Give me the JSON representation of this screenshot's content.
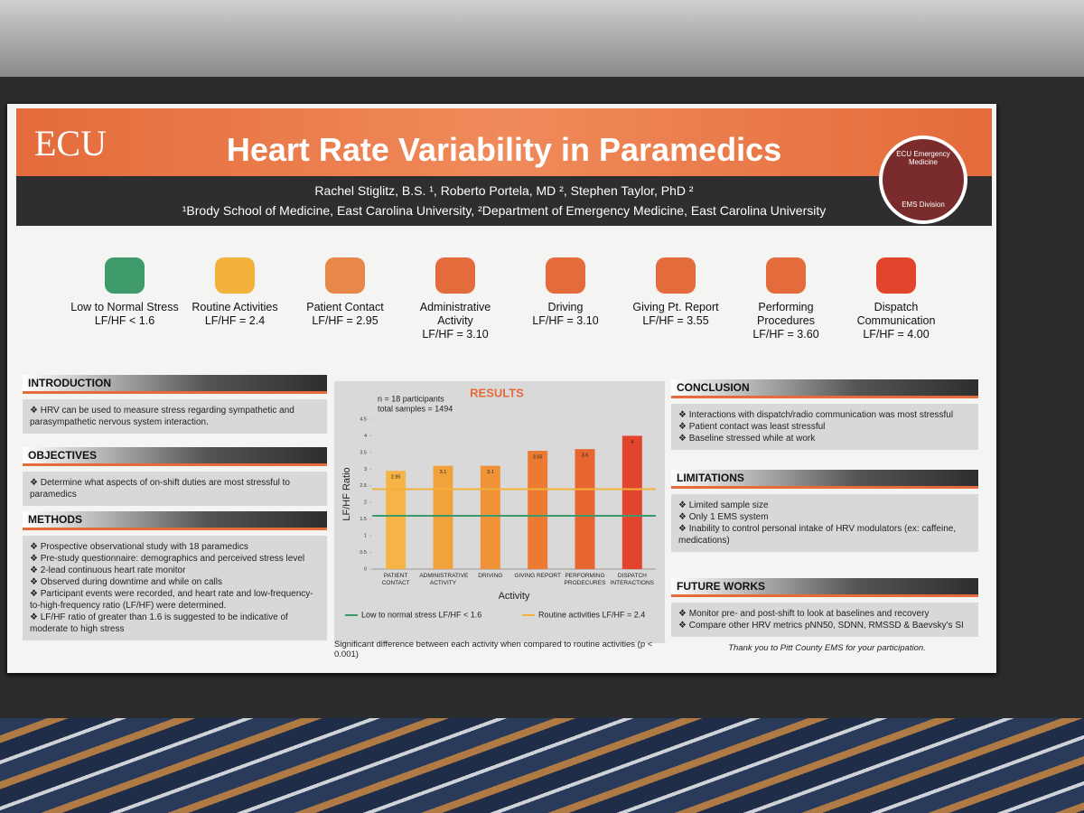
{
  "header": {
    "logo": "ECU",
    "title": "Heart Rate Variability in Paramedics",
    "authors": "Rachel Stiglitz, B.S. ¹, Roberto Portela, MD ², Stephen Taylor, PhD ²",
    "affiliations": "¹Brody School of Medicine, East Carolina University, ²Department of Emergency Medicine, East Carolina University",
    "badge_top": "ECU Emergency Medicine",
    "badge_bottom": "EMS Division"
  },
  "activities": [
    {
      "label": "Low to Normal Stress",
      "ratio": "LF/HF < 1.6"
    },
    {
      "label": "Routine Activities",
      "ratio": "LF/HF = 2.4"
    },
    {
      "label": "Patient Contact",
      "ratio": "LF/HF = 2.95"
    },
    {
      "label": "Administrative Activity",
      "ratio": "LF/HF = 3.10"
    },
    {
      "label": "Driving",
      "ratio": "LF/HF = 3.10"
    },
    {
      "label": "Giving Pt. Report",
      "ratio": "LF/HF = 3.55"
    },
    {
      "label": "Performing Procedures",
      "ratio": "LF/HF = 3.60"
    },
    {
      "label": "Dispatch Communication",
      "ratio": "LF/HF = 4.00"
    }
  ],
  "introduction": {
    "title": "INTRODUCTION",
    "items": [
      "HRV can be used to measure stress regarding sympathetic and parasympathetic nervous system interaction."
    ]
  },
  "objectives": {
    "title": "OBJECTIVES",
    "items": [
      "Determine what aspects of on-shift duties are most stressful to paramedics"
    ]
  },
  "methods": {
    "title": "METHODS",
    "items": [
      "Prospective observational study with 18 paramedics",
      "Pre-study questionnaire: demographics and perceived stress level",
      "2-lead continuous heart rate monitor",
      "Observed during downtime and while on calls",
      "Participant events were recorded, and heart rate and low-frequency-to-high-frequency ratio (LF/HF) were determined.",
      "LF/HF ratio of greater than 1.6 is suggested to be indicative of moderate to high stress"
    ]
  },
  "results": {
    "type": "bar",
    "title": "RESULTS",
    "notes": [
      "n = 18 participants",
      "total samples = 1494"
    ],
    "y_label": "LF/HF Ratio",
    "x_label": "Activity",
    "categories": [
      "PATIENT CONTACT",
      "ADMINISTRATIVE ACTIVITY",
      "DRIVING",
      "GIVING REPORT",
      "PERFORMING PRODECURES",
      "DISPATCH INTERACTIONS"
    ],
    "values": [
      2.95,
      3.1,
      3.1,
      3.55,
      3.6,
      4
    ],
    "colors": [
      "#f5b445",
      "#f2a23c",
      "#f09338",
      "#ec7a33",
      "#e8652f",
      "#e2452b"
    ],
    "ylim": [
      0,
      4.5
    ],
    "yticks": [
      0,
      0.5,
      1,
      1.5,
      2,
      2.5,
      3,
      3.5,
      4,
      4.5
    ],
    "reference_lines": [
      {
        "name": "Low to normal stress LF/HF < 1.6",
        "value": 1.6,
        "color": "#3a9a6a"
      },
      {
        "name": "Routine activities LF/HF = 2.4",
        "value": 2.4,
        "color": "#f2b13a"
      }
    ],
    "footnote": "Significant difference between each activity when compared to routine activities (p < 0.001)"
  },
  "conclusion": {
    "title": "CONCLUSION",
    "items": [
      "Interactions with dispatch/radio communication was most stressful",
      "Patient contact was least stressful",
      "Baseline stressed while at work"
    ]
  },
  "limitations": {
    "title": "LIMITATIONS",
    "items": [
      "Limited sample size",
      "Only 1 EMS system",
      "Inability to control personal intake of HRV modulators (ex: caffeine, medications)"
    ]
  },
  "future_works": {
    "title": "FUTURE WORKS",
    "items": [
      "Monitor pre- and post-shift to look at baselines and recovery",
      "Compare other HRV metrics pNN50, SDNN, RMSSD & Baevsky's SI"
    ]
  },
  "thanks": "Thank you to Pitt County EMS for your participation."
}
